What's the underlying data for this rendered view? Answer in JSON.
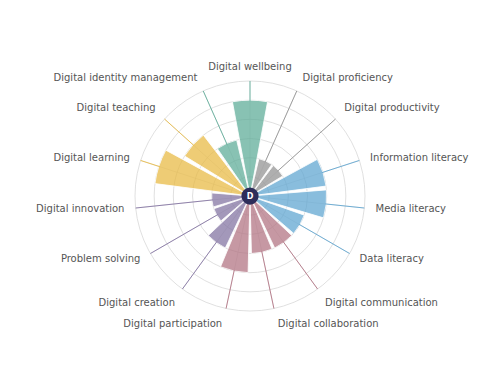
{
  "chart_data": {
    "type": "radial_bar",
    "categories": [
      "Digital wellbeing",
      "Digital proficiency",
      "Digital productivity",
      "Information literacy",
      "Media literacy",
      "Data literacy",
      "Digital communication",
      "Digital collaboration",
      "Digital participation",
      "Digital creation",
      "Problem solving",
      "Digital innovation",
      "Digital learning",
      "Digital teaching",
      "Digital identity management"
    ],
    "values": [
      5,
      2,
      2,
      4,
      4,
      3,
      3,
      3,
      4,
      3,
      2,
      2,
      5,
      4,
      3
    ],
    "colors": [
      "#5aaa96",
      "#909090",
      "#909090",
      "#5ba3d0",
      "#5ba3d0",
      "#5ba3d0",
      "#b07080",
      "#b07080",
      "#b07080",
      "#8070a0",
      "#8070a0",
      "#8070a0",
      "#e8b840",
      "#e8b840",
      "#5aaa96"
    ],
    "ylim": [
      0,
      6
    ],
    "yticks": [
      1,
      2,
      3,
      4,
      5,
      6
    ],
    "grid": true,
    "tick_labels": false,
    "annotations": [
      "D"
    ]
  }
}
